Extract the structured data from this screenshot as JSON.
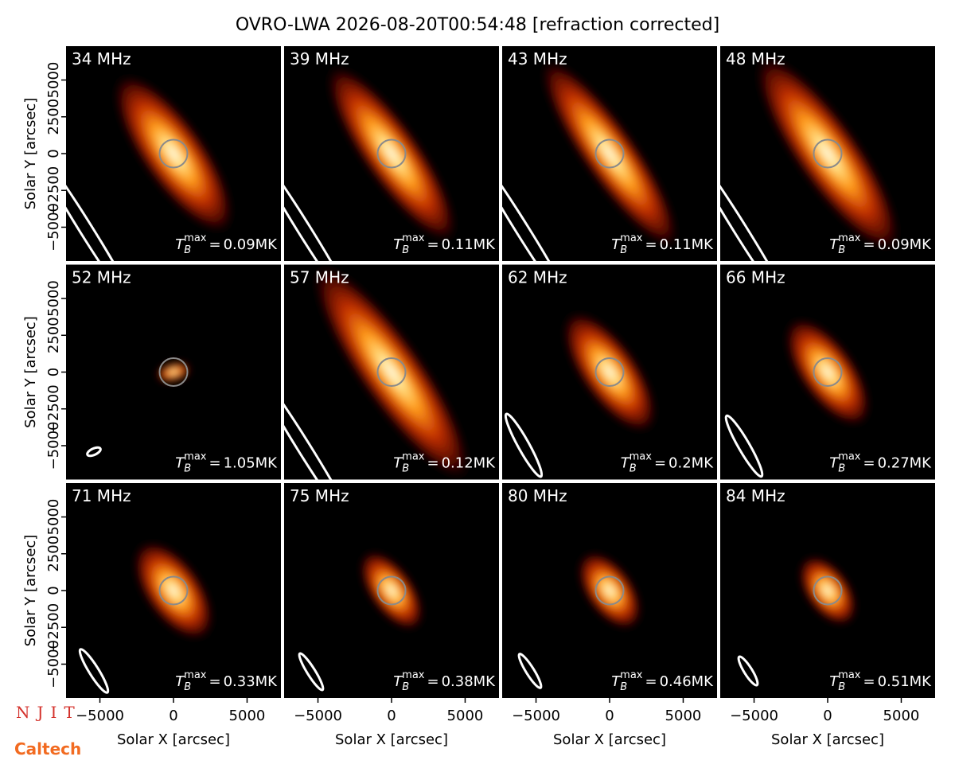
{
  "chart_data": {
    "type": "image",
    "title": "OVRO-LWA 2026-08-20T00:54:48 [refraction corrected]",
    "x_label": "Solar X [arcsec]",
    "y_label": "Solar Y [arcsec]",
    "xlim": [
      -7300,
      7300
    ],
    "ylim": [
      -7300,
      7300
    ],
    "xticks": [
      {
        "value": -5000,
        "label": "−5000"
      },
      0,
      5000
    ],
    "yticks": [
      {
        "value": -5000,
        "label": "−5000"
      },
      {
        "value": -2500,
        "label": "−2500"
      },
      0,
      2500,
      5000
    ],
    "tb_symbol": "T",
    "tb_sub": "B",
    "tb_sup": "max",
    "tb_equals": "=",
    "panels": [
      {
        "label": "34 MHz",
        "tb_label": "0.09MK"
      },
      {
        "label": "39 MHz",
        "tb_label": "0.11MK"
      },
      {
        "label": "43 MHz",
        "tb_label": "0.11MK"
      },
      {
        "label": "48 MHz",
        "tb_label": "0.09MK"
      },
      {
        "label": "52 MHz",
        "tb_label": "1.05MK"
      },
      {
        "label": "57 MHz",
        "tb_label": "0.12MK"
      },
      {
        "label": "62 MHz",
        "tb_label": "0.2MK"
      },
      {
        "label": "66 MHz",
        "tb_label": "0.27MK"
      },
      {
        "label": "71 MHz",
        "tb_label": "0.33MK"
      },
      {
        "label": "75 MHz",
        "tb_label": "0.38MK"
      },
      {
        "label": "80 MHz",
        "tb_label": "0.46MK"
      },
      {
        "label": "84 MHz",
        "tb_label": "0.51MK"
      }
    ]
  },
  "logos": {
    "top": "NJIT",
    "bottom": "Caltech"
  }
}
